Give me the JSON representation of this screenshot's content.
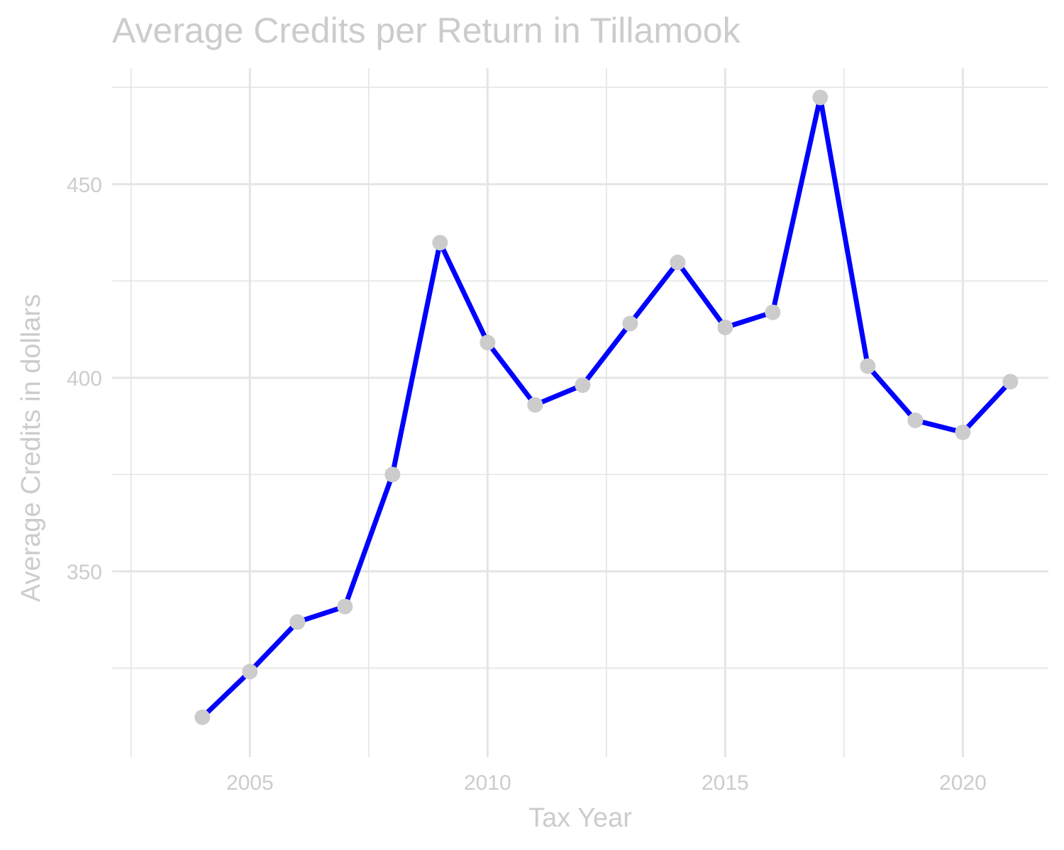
{
  "chart_data": {
    "type": "line",
    "title": "Average Credits per Return in Tillamook",
    "xlabel": "Tax Year",
    "ylabel": "Average Credits in dollars",
    "x": [
      2004,
      2005,
      2006,
      2007,
      2008,
      2009,
      2010,
      2011,
      2012,
      2013,
      2014,
      2015,
      2016,
      2017,
      2018,
      2019,
      2020,
      2021
    ],
    "series": [
      {
        "values": [
          312.3,
          324.1,
          336.9,
          340.9,
          375.0,
          434.9,
          409.1,
          393.0,
          398.1,
          414.0,
          429.8,
          413.0,
          416.9,
          472.4,
          403.0,
          389.0,
          385.9,
          399.0
        ]
      }
    ],
    "xlim": [
      2002.1,
      2021.8
    ],
    "ylim": [
      302,
      480
    ],
    "x_ticks": [
      2005,
      2010,
      2015,
      2020
    ],
    "x_tick_labels": [
      "2005",
      "2010",
      "2015",
      "2020"
    ],
    "y_ticks": [
      350,
      400,
      450
    ],
    "y_tick_labels": [
      "350",
      "400",
      "450"
    ],
    "grid": true,
    "colors": {
      "line": "#0000ff",
      "points": "#cccccc",
      "grid": "#e5e5e5",
      "text": "#cccccc"
    }
  }
}
